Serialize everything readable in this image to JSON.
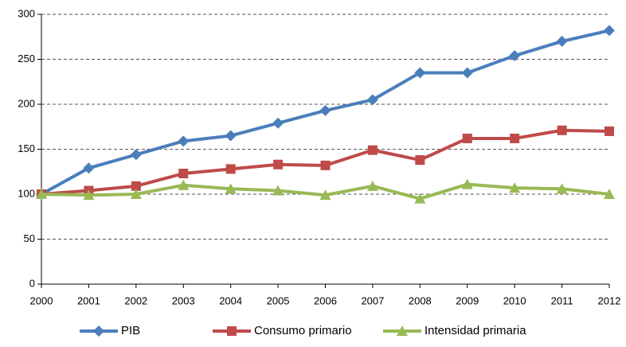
{
  "chart_data": {
    "type": "line",
    "categories": [
      "2000",
      "2001",
      "2002",
      "2003",
      "2004",
      "2005",
      "2006",
      "2007",
      "2008",
      "2009",
      "2010",
      "2011",
      "2012"
    ],
    "series": [
      {
        "name": "PIB",
        "color": "#4a7ebb",
        "marker": "diamond",
        "values": [
          100,
          129,
          144,
          159,
          165,
          179,
          193,
          205,
          235,
          235,
          254,
          270,
          282
        ]
      },
      {
        "name": "Consumo primario",
        "color": "#be4b48",
        "marker": "square",
        "values": [
          100,
          104,
          109,
          123,
          128,
          133,
          132,
          149,
          138,
          162,
          162,
          171,
          170
        ]
      },
      {
        "name": "Intensidad primaria",
        "color": "#98b954",
        "marker": "triangle",
        "values": [
          100,
          99,
          100,
          110,
          106,
          104,
          99,
          109,
          95,
          111,
          107,
          106,
          100
        ]
      }
    ],
    "ylim": [
      0,
      300
    ],
    "yticks": [
      0,
      50,
      100,
      150,
      200,
      250,
      300
    ],
    "grid": true,
    "legend": "bottom"
  }
}
